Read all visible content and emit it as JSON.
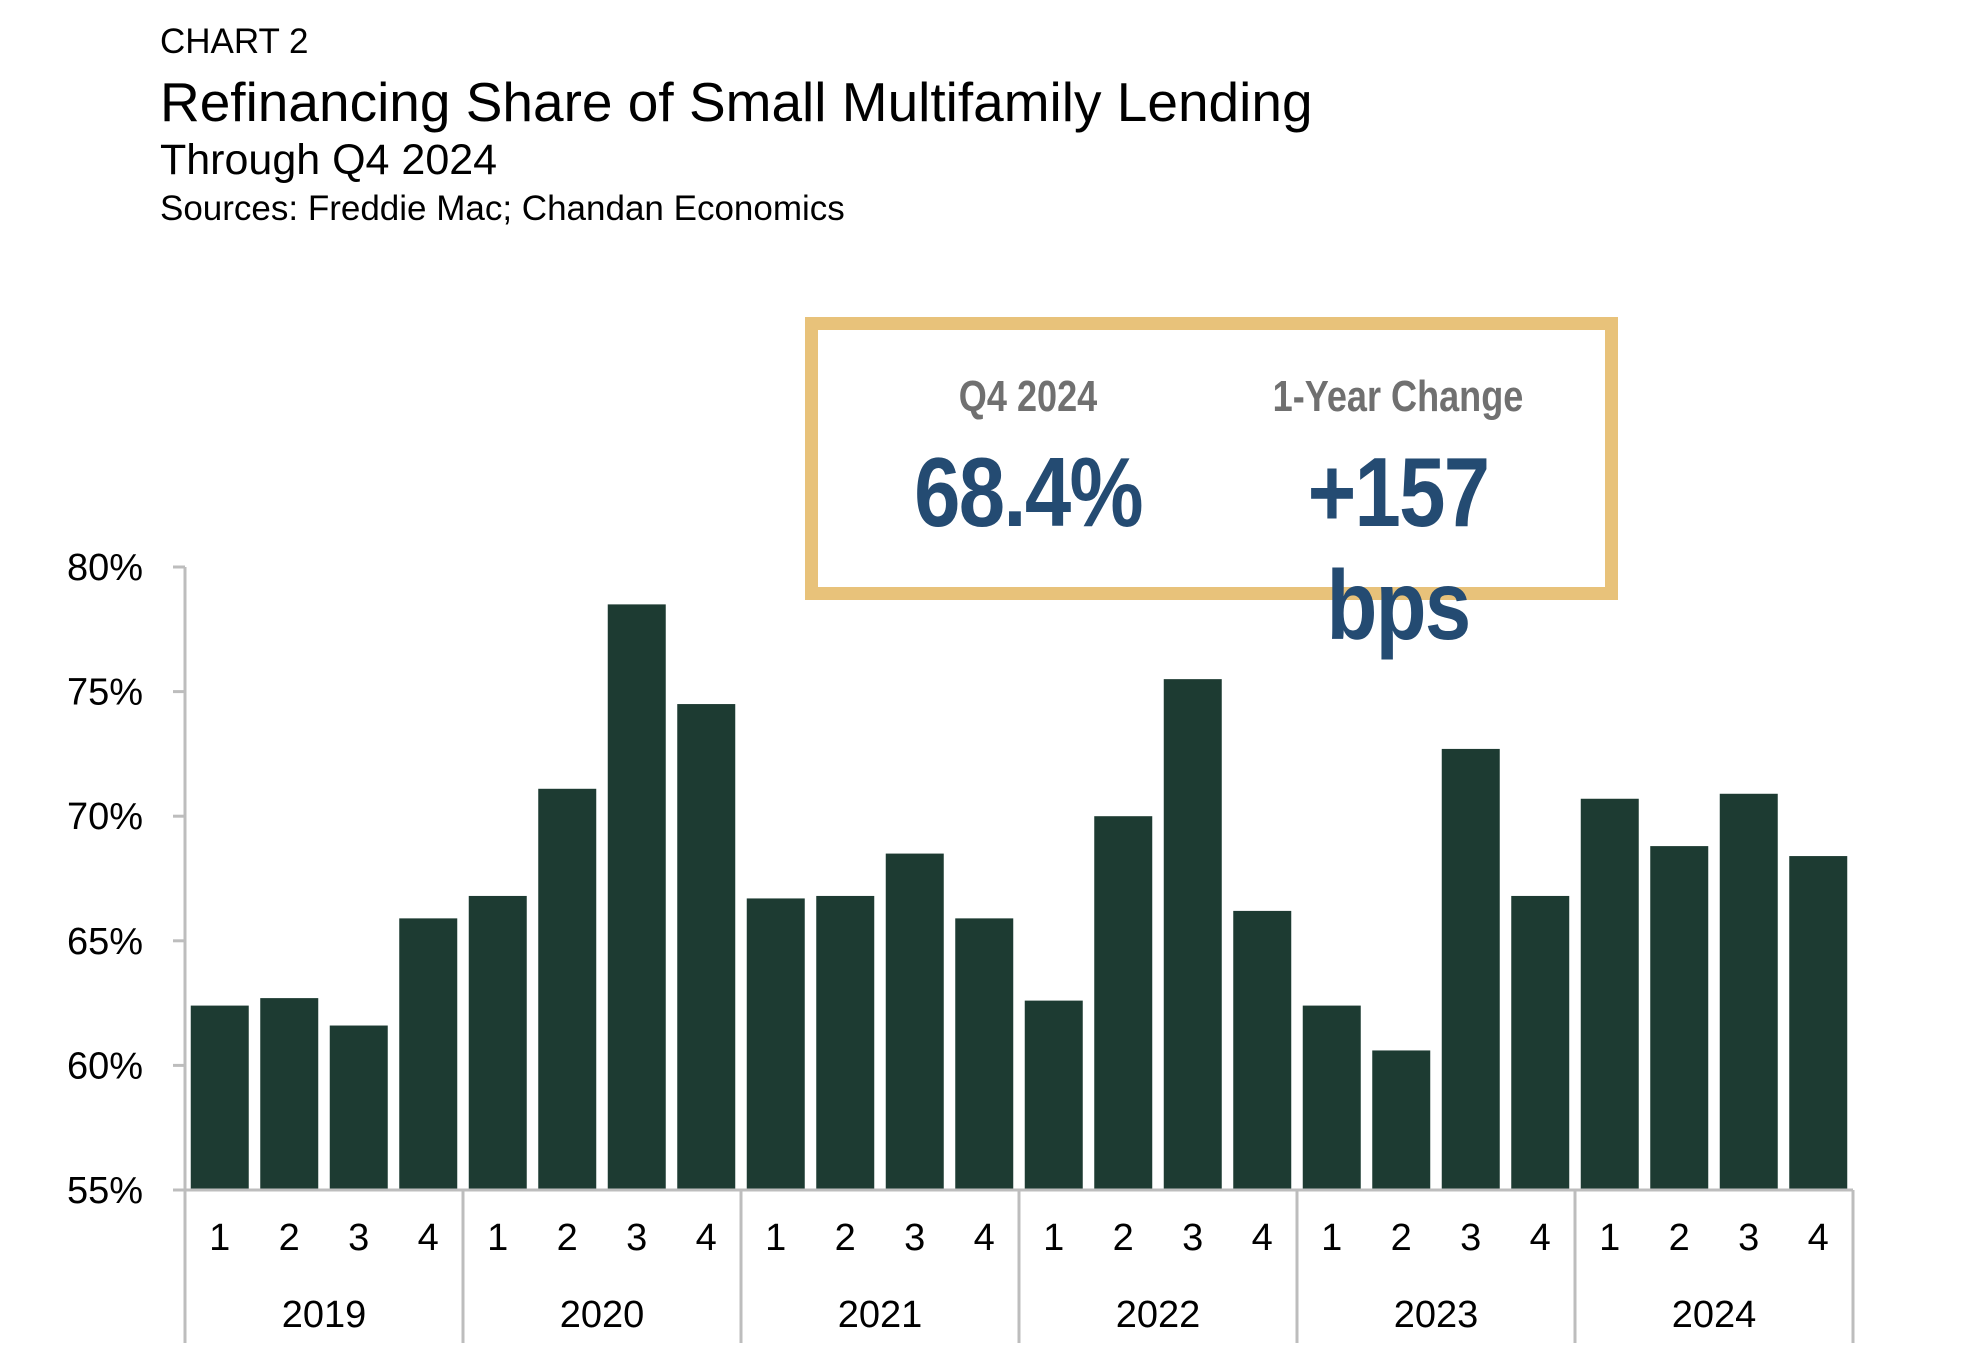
{
  "header": {
    "label": "CHART 2",
    "title": "Refinancing Share of Small Multifamily Lending",
    "subtitle": "Through Q4 2024",
    "source": "Sources: Freddie Mac; Chandan Economics"
  },
  "kpis": [
    {
      "label": "Q4 2024",
      "value": "68.4%"
    },
    {
      "label": "1-Year Change",
      "value": "+157 bps"
    }
  ],
  "colors": {
    "bar": "#1d3b32",
    "axis": "#bdbdbd",
    "kpi_border": "#e8c27a",
    "kpi_value": "#244b72",
    "kpi_label": "#707070"
  },
  "chart_data": {
    "type": "bar",
    "title": "Refinancing Share of Small Multifamily Lending",
    "xlabel": "",
    "ylabel": "",
    "ylim": [
      55,
      80
    ],
    "yticks": [
      55,
      60,
      65,
      70,
      75,
      80
    ],
    "ytick_labels": [
      "55%",
      "60%",
      "65%",
      "70%",
      "75%",
      "80%"
    ],
    "grid": false,
    "groups": [
      "2019",
      "2020",
      "2021",
      "2022",
      "2023",
      "2024"
    ],
    "quarter_labels": [
      "1",
      "2",
      "3",
      "4"
    ],
    "categories": [
      "2019 Q1",
      "2019 Q2",
      "2019 Q3",
      "2019 Q4",
      "2020 Q1",
      "2020 Q2",
      "2020 Q3",
      "2020 Q4",
      "2021 Q1",
      "2021 Q2",
      "2021 Q3",
      "2021 Q4",
      "2022 Q1",
      "2022 Q2",
      "2022 Q3",
      "2022 Q4",
      "2023 Q1",
      "2023 Q2",
      "2023 Q3",
      "2023 Q4",
      "2024 Q1",
      "2024 Q2",
      "2024 Q3",
      "2024 Q4"
    ],
    "values": [
      62.4,
      62.7,
      61.6,
      65.9,
      66.8,
      71.1,
      78.5,
      74.5,
      66.7,
      66.8,
      68.5,
      65.9,
      62.6,
      70.0,
      75.5,
      66.2,
      62.4,
      60.6,
      72.7,
      66.8,
      70.7,
      68.8,
      70.9,
      68.4
    ]
  }
}
